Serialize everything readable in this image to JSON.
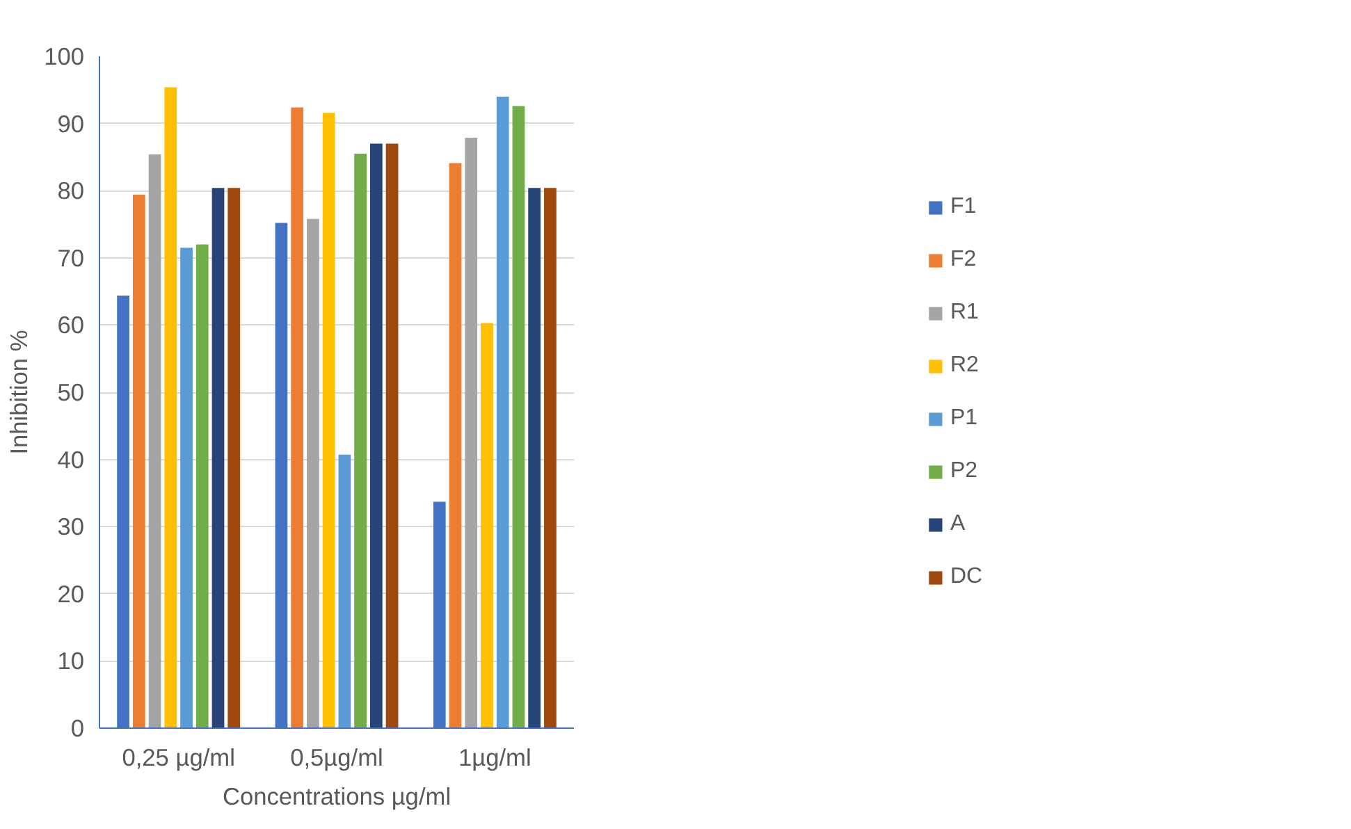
{
  "chart_data": {
    "type": "bar",
    "xlabel": "Concentrations µg/ml",
    "ylabel": "Inhibition %",
    "categories": [
      "0,25 µg/ml",
      "0,5µg/ml",
      "1µg/ml"
    ],
    "series": [
      {
        "name": "F1",
        "color": "#4472c4",
        "values": [
          64.4,
          75.2,
          33.7
        ]
      },
      {
        "name": "F2",
        "color": "#ed7d31",
        "values": [
          79.4,
          92.4,
          84.1
        ]
      },
      {
        "name": "R1",
        "color": "#a5a5a5",
        "values": [
          85.4,
          75.8,
          87.9
        ]
      },
      {
        "name": "R2",
        "color": "#ffc000",
        "values": [
          95.4,
          91.6,
          60.3
        ]
      },
      {
        "name": "P1",
        "color": "#5b9bd5",
        "values": [
          71.5,
          40.7,
          94.0
        ]
      },
      {
        "name": "P2",
        "color": "#70ad47",
        "values": [
          72.0,
          85.5,
          92.6
        ]
      },
      {
        "name": "A",
        "color": "#264478",
        "values": [
          80.4,
          87.0,
          80.4
        ]
      },
      {
        "name": "DC",
        "color": "#9e480e",
        "values": [
          80.4,
          87.0,
          80.4
        ]
      }
    ],
    "ylim": [
      0,
      100
    ],
    "yticks": [
      0,
      10,
      20,
      30,
      40,
      50,
      60,
      70,
      80,
      90,
      100
    ],
    "grid": "y",
    "legend": "right"
  }
}
